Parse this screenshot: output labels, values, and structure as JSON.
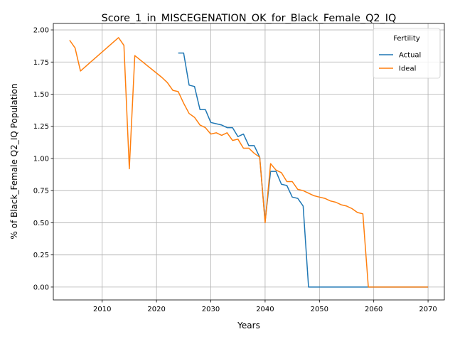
{
  "chart_data": {
    "type": "line",
    "title": "Score_1_in_MISCEGENATION_OK_for_Black_Female_Q2_IQ",
    "xlabel": "Years",
    "ylabel": "% of Black_Female Q2_IQ Population",
    "xlim": [
      2001,
      2073
    ],
    "ylim": [
      -0.1,
      2.05
    ],
    "xticks": [
      2010,
      2020,
      2030,
      2040,
      2050,
      2060,
      2070
    ],
    "yticks": [
      "0.00",
      "0.25",
      "0.50",
      "0.75",
      "1.00",
      "1.25",
      "1.50",
      "1.75",
      "2.00"
    ],
    "grid": true,
    "legend": {
      "title": "Fertility",
      "position": "top-right"
    },
    "series": [
      {
        "name": "Actual",
        "color": "#1f77b4",
        "x": [
          2024,
          2025,
          2026,
          2027,
          2028,
          2029,
          2030,
          2031,
          2032,
          2033,
          2034,
          2035,
          2036,
          2037,
          2038,
          2039,
          2040,
          2041,
          2042,
          2043,
          2044,
          2045,
          2046,
          2047,
          2048,
          2049,
          2050,
          2055,
          2060,
          2065,
          2070
        ],
        "y": [
          1.82,
          1.82,
          1.57,
          1.56,
          1.38,
          1.38,
          1.28,
          1.27,
          1.26,
          1.24,
          1.24,
          1.17,
          1.19,
          1.1,
          1.1,
          1.01,
          0.51,
          0.9,
          0.9,
          0.8,
          0.79,
          0.7,
          0.69,
          0.63,
          0.0,
          0.0,
          0.0,
          0.0,
          0.0,
          0.0,
          0.0
        ]
      },
      {
        "name": "Ideal",
        "color": "#ff7f0e",
        "x": [
          2004,
          2005,
          2006,
          2013,
          2014,
          2015,
          2016,
          2021,
          2022,
          2023,
          2024,
          2025,
          2026,
          2027,
          2028,
          2029,
          2030,
          2031,
          2032,
          2033,
          2034,
          2035,
          2036,
          2037,
          2038,
          2039,
          2040,
          2041,
          2042,
          2043,
          2044,
          2045,
          2046,
          2047,
          2048,
          2049,
          2050,
          2051,
          2052,
          2053,
          2054,
          2055,
          2056,
          2057,
          2058,
          2059,
          2060,
          2065,
          2070
        ],
        "y": [
          1.92,
          1.86,
          1.68,
          1.94,
          1.88,
          0.92,
          1.8,
          1.63,
          1.59,
          1.53,
          1.52,
          1.43,
          1.35,
          1.32,
          1.26,
          1.24,
          1.19,
          1.2,
          1.18,
          1.2,
          1.14,
          1.15,
          1.08,
          1.08,
          1.04,
          1.01,
          0.5,
          0.96,
          0.91,
          0.89,
          0.82,
          0.82,
          0.76,
          0.75,
          0.73,
          0.71,
          0.7,
          0.69,
          0.67,
          0.66,
          0.64,
          0.63,
          0.61,
          0.58,
          0.57,
          0.0,
          0.0,
          0.0,
          0.0
        ]
      }
    ]
  }
}
